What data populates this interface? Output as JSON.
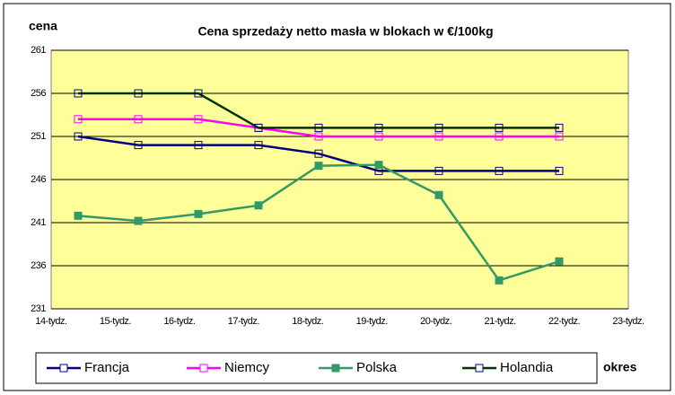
{
  "chart_data": {
    "type": "line",
    "title": "Cena sprzedaży netto masła w blokach w €/100kg",
    "y_label": "cena",
    "x_label": "okres",
    "categories": [
      "14-tydz.",
      "15-tydz.",
      "16-tydz.",
      "17-tydz.",
      "18-tydz.",
      "19-tydz.",
      "20-tydz.",
      "21-tydz.",
      "22-tydz.",
      "23-tydz."
    ],
    "series": [
      {
        "name": "Francja",
        "color": "#000080",
        "marker": "open",
        "values": [
          251,
          250,
          250,
          250,
          249,
          247,
          247,
          247,
          247,
          null
        ]
      },
      {
        "name": "Niemcy",
        "color": "#ff00ff",
        "marker": "open",
        "values": [
          253,
          253,
          253,
          252,
          251,
          251,
          251,
          251,
          251,
          null
        ]
      },
      {
        "name": "Polska",
        "color": "#339966",
        "marker": "filled",
        "values": [
          241.8,
          241.2,
          242.0,
          243.0,
          247.6,
          247.7,
          244.2,
          234.3,
          236.5,
          null
        ]
      },
      {
        "name": "Holandia",
        "color": "#003300",
        "marker": "open",
        "values": [
          256,
          256,
          256,
          252,
          252,
          252,
          252,
          252,
          252,
          null
        ]
      }
    ],
    "ylim": [
      231,
      261
    ],
    "yticks": [
      231,
      236,
      241,
      246,
      251,
      256,
      261
    ],
    "grid": true,
    "plot_background": "#ffff99",
    "legend": "bottom"
  }
}
